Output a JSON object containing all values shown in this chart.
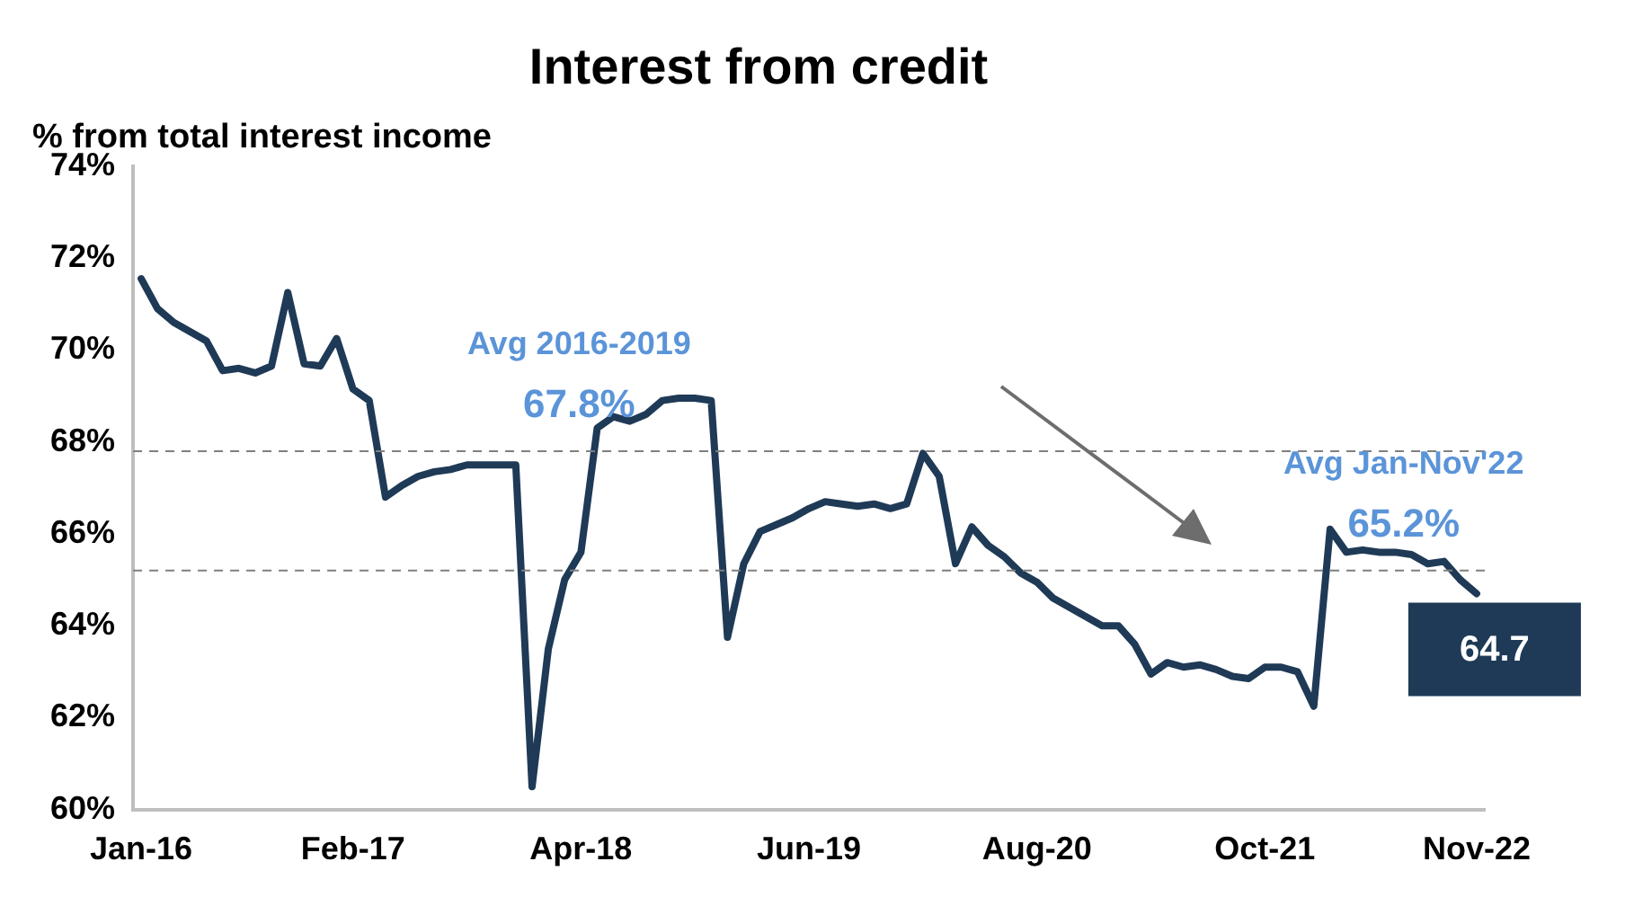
{
  "chart_data": {
    "type": "line",
    "title": "Interest from credit",
    "subtitle": "% from total interest income",
    "categories": [
      "Jan-16",
      null,
      null,
      null,
      null,
      null,
      null,
      null,
      null,
      null,
      null,
      null,
      null,
      "Feb-17",
      null,
      null,
      null,
      null,
      null,
      null,
      null,
      null,
      null,
      null,
      null,
      null,
      null,
      "Apr-18",
      null,
      null,
      null,
      null,
      null,
      null,
      null,
      null,
      null,
      null,
      null,
      null,
      null,
      "Jun-19",
      null,
      null,
      null,
      null,
      null,
      null,
      null,
      null,
      null,
      null,
      null,
      null,
      null,
      "Aug-20",
      null,
      null,
      null,
      null,
      null,
      null,
      null,
      null,
      null,
      null,
      null,
      null,
      null,
      "Oct-21",
      null,
      null,
      null,
      null,
      null,
      null,
      null,
      null,
      null,
      null,
      null,
      null,
      "Nov-22"
    ],
    "series": [
      {
        "color": "#1f3a56",
        "values": [
          71.55,
          70.9,
          70.6,
          70.4,
          70.2,
          69.55,
          69.6,
          69.5,
          69.65,
          71.25,
          69.7,
          69.65,
          70.25,
          69.15,
          68.9,
          66.8,
          67.05,
          67.25,
          67.35,
          67.4,
          67.5,
          67.5,
          67.5,
          67.5,
          60.5,
          63.5,
          65.0,
          65.6,
          68.3,
          68.55,
          68.45,
          68.6,
          68.9,
          68.95,
          68.95,
          68.9,
          63.75,
          65.35,
          66.05,
          66.2,
          66.35,
          66.55,
          66.7,
          66.65,
          66.6,
          66.65,
          66.55,
          66.65,
          67.75,
          67.25,
          65.35,
          66.15,
          65.75,
          65.5,
          65.15,
          64.95,
          64.6,
          64.4,
          64.2,
          64.0,
          64.0,
          63.6,
          62.95,
          63.2,
          63.1,
          63.15,
          63.05,
          62.9,
          62.85,
          63.1,
          63.1,
          63.0,
          62.25,
          66.1,
          65.6,
          65.65,
          65.6,
          65.6,
          65.55,
          65.35,
          65.4,
          65.0,
          64.7
        ]
      }
    ],
    "ylim": [
      60,
      74
    ],
    "yticks": [
      {
        "value": 60,
        "label": "60%"
      },
      {
        "value": 62,
        "label": "62%"
      },
      {
        "value": 64,
        "label": "64%"
      },
      {
        "value": 66,
        "label": "66%"
      },
      {
        "value": 68,
        "label": "68%"
      },
      {
        "value": 70,
        "label": "70%"
      },
      {
        "value": 72,
        "label": "72%"
      },
      {
        "value": 74,
        "label": "74%"
      }
    ],
    "ref_lines": [
      {
        "axis": "y",
        "value": 67.8,
        "label": "Avg 2016-2019\n67.8%",
        "color": "#7f7f7f",
        "line_style": "dashed"
      },
      {
        "axis": "y",
        "value": 65.2,
        "label": "Avg Jan-Nov'22\n65.2%",
        "color": "#7f7f7f",
        "line_style": "dashed"
      }
    ],
    "annotations": [
      {
        "text": "64.7",
        "x": "Nov-22",
        "y": 64.7
      }
    ],
    "grid": false,
    "legend": false,
    "marker": "none",
    "line_style": "solid"
  }
}
